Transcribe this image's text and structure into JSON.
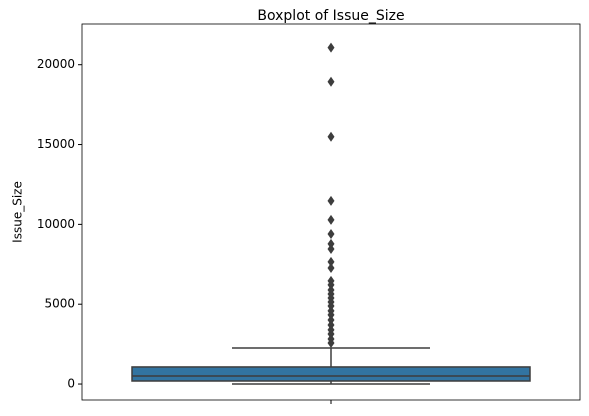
{
  "chart_data": {
    "type": "box",
    "title": "Boxplot of Issue_Size",
    "ylabel": "Issue_Size",
    "color": "#3274a1",
    "whisker_low": 0,
    "q1": 190,
    "median": 500,
    "q3": 1070,
    "whisker_high": 2260,
    "outliers": [
      21070,
      18930,
      15490,
      11470,
      10280,
      9400,
      8780,
      8460,
      7650,
      7270,
      6460,
      6210,
      5890,
      5640,
      5390,
      5140,
      4890,
      4580,
      4330,
      4010,
      3700,
      3390,
      3130,
      2820,
      2570
    ],
    "ylim": [
      -1000,
      22550
    ],
    "yticks": [
      0,
      5000,
      10000,
      15000,
      20000
    ]
  }
}
